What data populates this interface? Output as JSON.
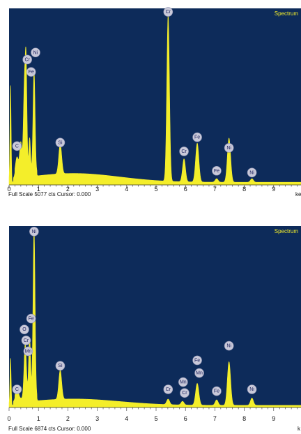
{
  "colors": {
    "plot_background": "#0d2b5a",
    "spectrum_fill": "#f4ee2a",
    "label_circle": "#c9c9d9",
    "label_text": "#1a1f5c"
  },
  "chart_data": [
    {
      "type": "area",
      "title": "Spectrum",
      "xlabel": "ke",
      "xlim": [
        0,
        10
      ],
      "ylim": [
        0,
        1
      ],
      "x_ticks": [
        "0",
        "1",
        "2",
        "3",
        "4",
        "5",
        "6",
        "7",
        "8",
        "9",
        "1"
      ],
      "footer": "Full Scale 5077 cts Cursor: 0.000",
      "peaks": [
        {
          "x": 0.05,
          "h": 0.55,
          "w": 0.02
        },
        {
          "x": 0.27,
          "h": 0.1,
          "w": 0.05
        },
        {
          "x": 0.4,
          "h": 0.18,
          "w": 0.04
        },
        {
          "x": 0.52,
          "h": 0.47,
          "w": 0.035
        },
        {
          "x": 0.58,
          "h": 0.58,
          "w": 0.03
        },
        {
          "x": 0.7,
          "h": 0.2,
          "w": 0.03
        },
        {
          "x": 0.85,
          "h": 0.58,
          "w": 0.035
        },
        {
          "x": 1.74,
          "h": 0.17,
          "w": 0.05
        },
        {
          "x": 5.41,
          "h": 0.94,
          "w": 0.045
        },
        {
          "x": 5.95,
          "h": 0.13,
          "w": 0.05
        },
        {
          "x": 6.4,
          "h": 0.22,
          "w": 0.055
        },
        {
          "x": 7.06,
          "h": 0.02,
          "w": 0.05
        },
        {
          "x": 7.48,
          "h": 0.25,
          "w": 0.055
        },
        {
          "x": 8.26,
          "h": 0.02,
          "w": 0.05
        }
      ],
      "background": {
        "base": 0.015,
        "bump": 0.05,
        "center": 2.2,
        "decay": 2.2
      },
      "peak_labels": [
        {
          "label": "C",
          "x": 0.27,
          "y": 0.22
        },
        {
          "label": "Cr",
          "x": 0.62,
          "y": 0.71
        },
        {
          "label": "Ni",
          "x": 0.9,
          "y": 0.75
        },
        {
          "label": "Fe",
          "x": 0.75,
          "y": 0.64
        },
        {
          "label": "Si",
          "x": 1.74,
          "y": 0.24
        },
        {
          "label": "Cr",
          "x": 5.41,
          "y": 0.98
        },
        {
          "label": "Cr",
          "x": 5.95,
          "y": 0.19
        },
        {
          "label": "Fe",
          "x": 6.4,
          "y": 0.27
        },
        {
          "label": "Fe",
          "x": 7.06,
          "y": 0.08
        },
        {
          "label": "Ni",
          "x": 7.48,
          "y": 0.21
        },
        {
          "label": "Ni",
          "x": 8.26,
          "y": 0.07
        }
      ]
    },
    {
      "type": "area",
      "title": "Spectrum",
      "xlabel": "k",
      "xlim": [
        0,
        10
      ],
      "ylim": [
        0,
        1
      ],
      "x_ticks": [
        "0",
        "1",
        "2",
        "3",
        "4",
        "5",
        "6",
        "7",
        "8",
        "9"
      ],
      "footer": "Full Scale 6874 cts Cursor: 0.000",
      "peaks": [
        {
          "x": 0.05,
          "h": 0.26,
          "w": 0.02
        },
        {
          "x": 0.27,
          "h": 0.06,
          "w": 0.05
        },
        {
          "x": 0.55,
          "h": 0.3,
          "w": 0.04
        },
        {
          "x": 0.7,
          "h": 0.33,
          "w": 0.035
        },
        {
          "x": 0.85,
          "h": 0.93,
          "w": 0.035
        },
        {
          "x": 1.74,
          "h": 0.16,
          "w": 0.05
        },
        {
          "x": 5.41,
          "h": 0.03,
          "w": 0.05
        },
        {
          "x": 5.9,
          "h": 0.02,
          "w": 0.05
        },
        {
          "x": 6.4,
          "h": 0.12,
          "w": 0.055
        },
        {
          "x": 7.06,
          "h": 0.03,
          "w": 0.05
        },
        {
          "x": 7.48,
          "h": 0.24,
          "w": 0.055
        },
        {
          "x": 8.26,
          "h": 0.04,
          "w": 0.05
        }
      ],
      "background": {
        "base": 0.012,
        "bump": 0.035,
        "center": 2.2,
        "decay": 2.2
      },
      "peak_labels": [
        {
          "label": "C",
          "x": 0.27,
          "y": 0.1
        },
        {
          "label": "Fe",
          "x": 0.75,
          "y": 0.49
        },
        {
          "label": "O",
          "x": 0.52,
          "y": 0.43
        },
        {
          "label": "Cr",
          "x": 0.58,
          "y": 0.37
        },
        {
          "label": "Mn",
          "x": 0.65,
          "y": 0.31
        },
        {
          "label": "Ni",
          "x": 0.85,
          "y": 0.97
        },
        {
          "label": "Si",
          "x": 1.74,
          "y": 0.23
        },
        {
          "label": "Cr",
          "x": 5.41,
          "y": 0.1
        },
        {
          "label": "Mn",
          "x": 5.92,
          "y": 0.14
        },
        {
          "label": "Cr",
          "x": 5.97,
          "y": 0.08
        },
        {
          "label": "Fe",
          "x": 6.4,
          "y": 0.26
        },
        {
          "label": "Mn",
          "x": 6.47,
          "y": 0.19
        },
        {
          "label": "Fe",
          "x": 7.06,
          "y": 0.09
        },
        {
          "label": "Ni",
          "x": 7.48,
          "y": 0.34
        },
        {
          "label": "Ni",
          "x": 8.26,
          "y": 0.1
        }
      ]
    }
  ]
}
